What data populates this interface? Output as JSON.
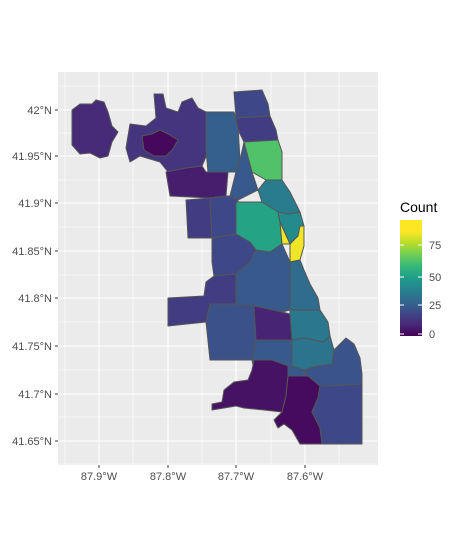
{
  "map": {
    "x_ticks": [
      "87.9°W",
      "87.8°W",
      "87.7°W",
      "87.6°W"
    ],
    "y_ticks": [
      "42°N",
      "41.95°N",
      "41.9°N",
      "41.85°N",
      "41.8°N",
      "41.75°N",
      "41.7°N",
      "41.65°N"
    ]
  },
  "legend": {
    "title": "Count",
    "labels": [
      "75",
      "50",
      "25",
      "0"
    ],
    "range": [
      0,
      100
    ],
    "scale": "viridis"
  },
  "regions": [
    {
      "id": "ohare",
      "value": 12
    },
    {
      "id": "far-northwest",
      "value": 15
    },
    {
      "id": "northwest-pocket",
      "value": 2
    },
    {
      "id": "north-central",
      "value": 30
    },
    {
      "id": "rogers-park",
      "value": 22
    },
    {
      "id": "edgewater",
      "value": 18
    },
    {
      "id": "lincoln-square",
      "value": 28
    },
    {
      "id": "lakeview",
      "value": 72
    },
    {
      "id": "portage-park",
      "value": 8
    },
    {
      "id": "lincoln-park",
      "value": 42
    },
    {
      "id": "austin",
      "value": 18
    },
    {
      "id": "humboldt",
      "value": 22
    },
    {
      "id": "west-town",
      "value": 58
    },
    {
      "id": "near-north",
      "value": 48
    },
    {
      "id": "loop",
      "value": 98
    },
    {
      "id": "west-side",
      "value": 22
    },
    {
      "id": "near-south-west",
      "value": 28
    },
    {
      "id": "bridgeport",
      "value": 35
    },
    {
      "id": "bronzeville",
      "value": 40
    },
    {
      "id": "southwest-1",
      "value": 18
    },
    {
      "id": "southwest-2",
      "value": 25
    },
    {
      "id": "south-central",
      "value": 10
    },
    {
      "id": "hyde-park",
      "value": 38
    },
    {
      "id": "south-chicago-west",
      "value": 28
    },
    {
      "id": "south-chicago",
      "value": 26
    },
    {
      "id": "beverly",
      "value": 5
    },
    {
      "id": "pullman",
      "value": 3
    },
    {
      "id": "far-south",
      "value": 22
    }
  ]
}
